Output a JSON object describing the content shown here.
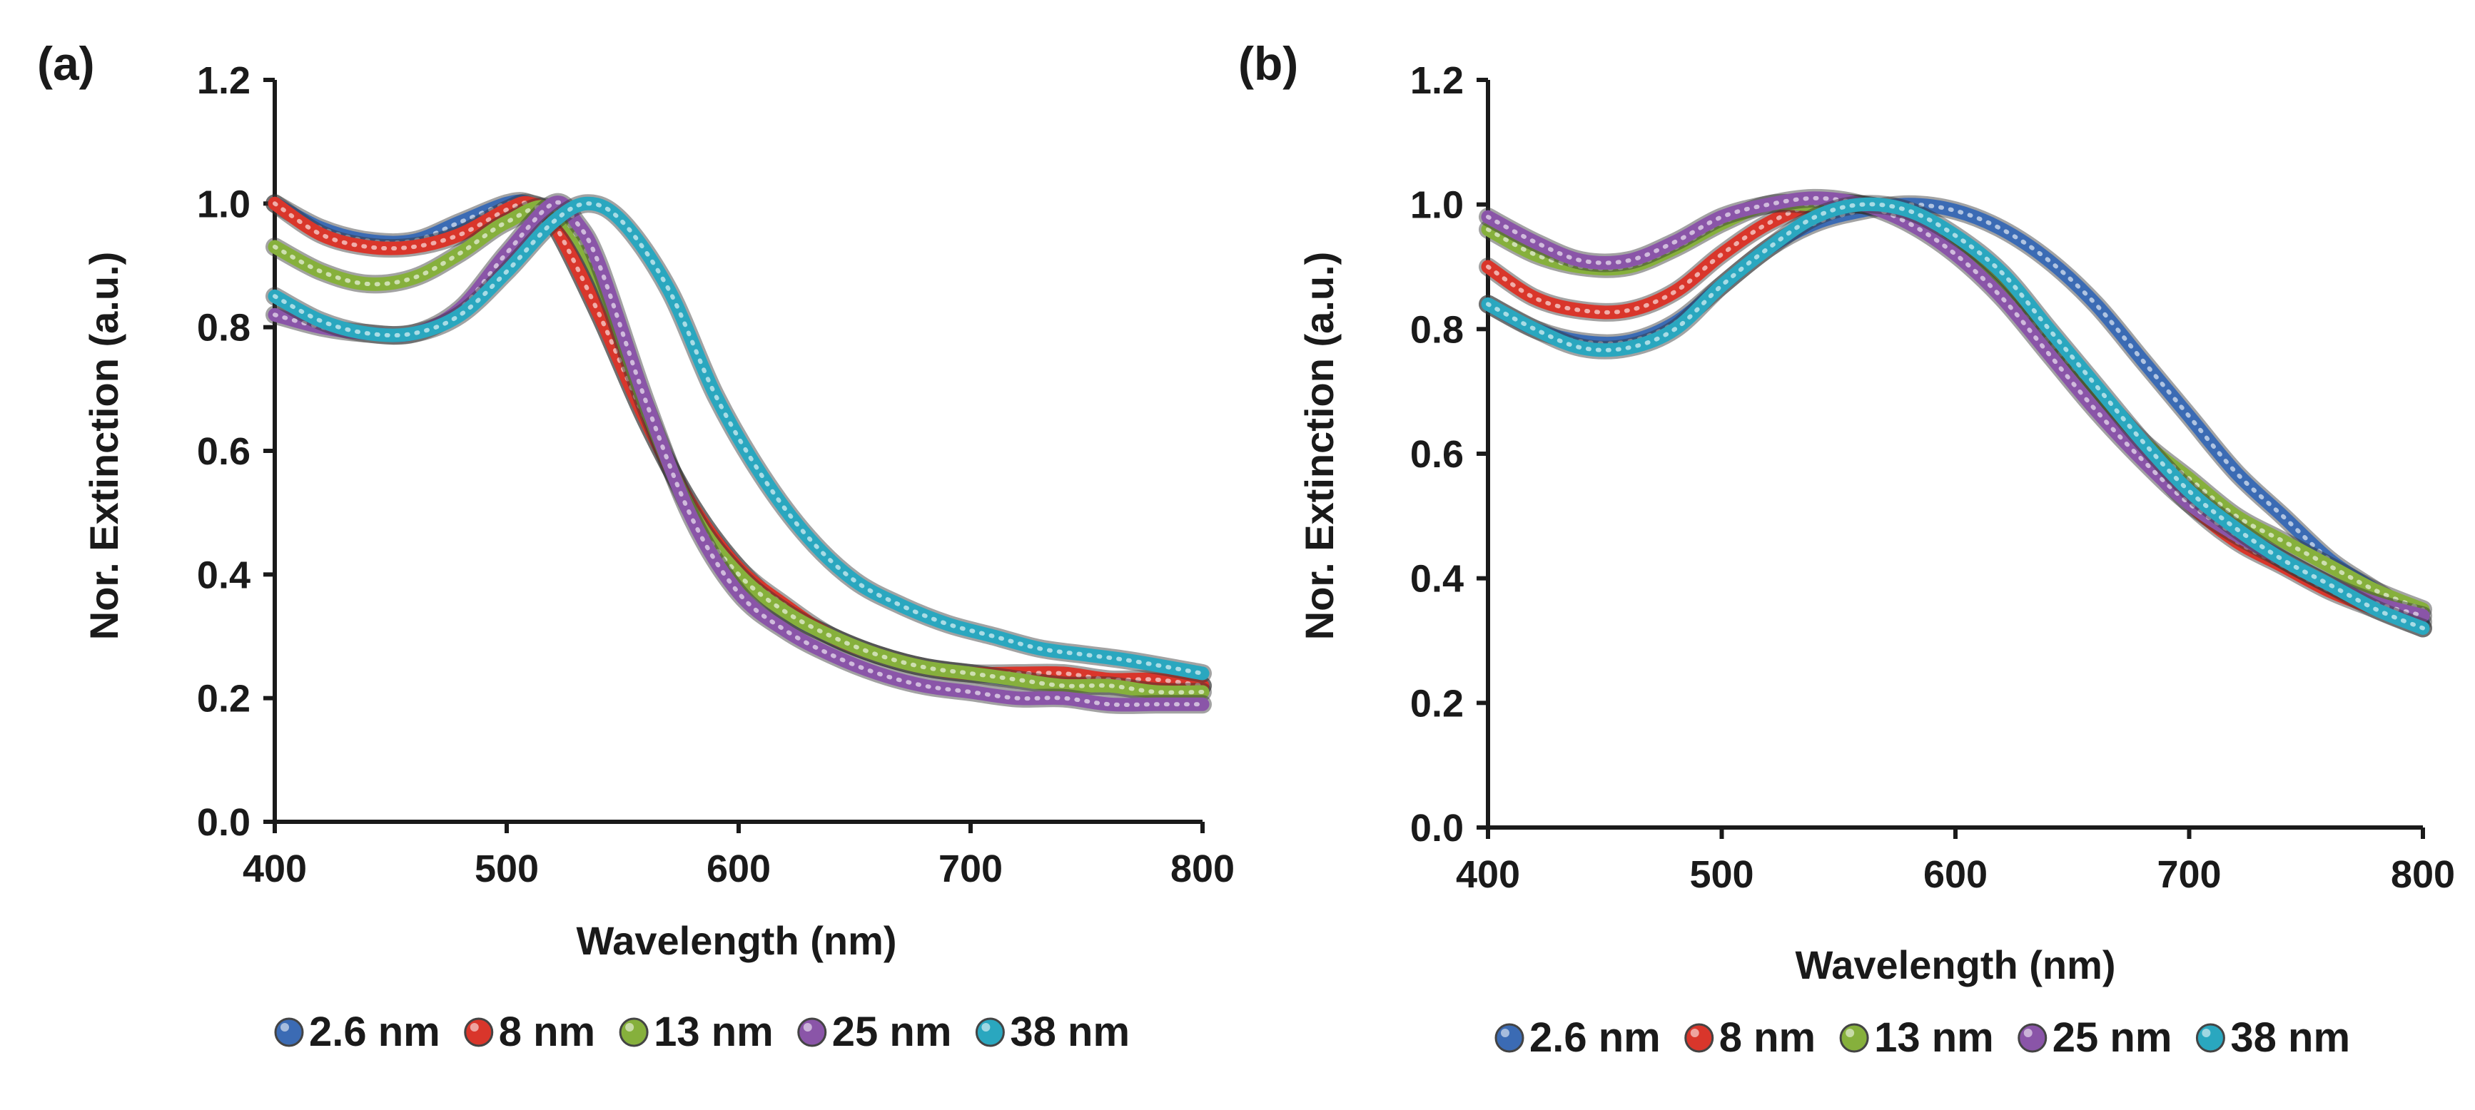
{
  "figure": {
    "panels": [
      {
        "label": "(a)",
        "xlabel": "Wavelength (nm)",
        "ylabel": "Nor. Extinction (a.u.)"
      },
      {
        "label": "(b)",
        "xlabel": "Wavelength (nm)",
        "ylabel": "Nor. Extinction (a.u.)"
      }
    ]
  },
  "chart_data": [
    {
      "type": "line",
      "panel_label": "(a)",
      "title": "",
      "xlabel": "Wavelength (nm)",
      "ylabel": "Nor. Extinction (a.u.)",
      "xlim": [
        400,
        800
      ],
      "ylim": [
        0.0,
        1.2
      ],
      "xticks": [
        400,
        500,
        600,
        700,
        800
      ],
      "xtick_labels": [
        "400",
        "500",
        "600",
        "700",
        "800"
      ],
      "yticks": [
        0.0,
        0.2,
        0.4,
        0.6,
        0.8,
        1.0,
        1.2
      ],
      "ytick_labels": [
        "0.0",
        "0.2",
        "0.4",
        "0.6",
        "0.8",
        "1.0",
        "1.2"
      ],
      "grid": false,
      "legend_position": "bottom",
      "series": [
        {
          "name": "2.6 nm",
          "color": "#3b6bb4",
          "x": [
            400,
            420,
            440,
            460,
            480,
            500,
            510,
            520,
            540,
            560,
            580,
            600,
            620,
            640,
            660,
            680,
            700,
            720,
            740,
            760,
            780,
            800
          ],
          "y": [
            1.0,
            0.96,
            0.94,
            0.94,
            0.97,
            1.0,
            1.0,
            0.97,
            0.82,
            0.65,
            0.51,
            0.41,
            0.34,
            0.3,
            0.27,
            0.25,
            0.24,
            0.23,
            0.23,
            0.22,
            0.22,
            0.22
          ]
        },
        {
          "name": "8 nm",
          "color": "#d9362b",
          "x": [
            400,
            420,
            440,
            460,
            480,
            500,
            510,
            520,
            540,
            560,
            580,
            600,
            620,
            640,
            660,
            680,
            700,
            720,
            740,
            760,
            780,
            800
          ],
          "y": [
            1.0,
            0.95,
            0.93,
            0.93,
            0.95,
            0.99,
            1.0,
            0.97,
            0.82,
            0.65,
            0.51,
            0.41,
            0.35,
            0.3,
            0.27,
            0.25,
            0.24,
            0.24,
            0.24,
            0.23,
            0.23,
            0.22
          ]
        },
        {
          "name": "13 nm",
          "color": "#86b03c",
          "x": [
            400,
            420,
            440,
            460,
            480,
            500,
            520,
            540,
            560,
            580,
            600,
            620,
            640,
            660,
            680,
            700,
            720,
            740,
            760,
            780,
            800
          ],
          "y": [
            0.93,
            0.89,
            0.87,
            0.88,
            0.92,
            0.97,
            0.99,
            0.88,
            0.67,
            0.5,
            0.4,
            0.34,
            0.3,
            0.27,
            0.25,
            0.24,
            0.23,
            0.22,
            0.22,
            0.21,
            0.21
          ]
        },
        {
          "name": "25 nm",
          "color": "#8a55a8",
          "x": [
            400,
            420,
            440,
            460,
            480,
            500,
            520,
            530,
            540,
            560,
            580,
            600,
            620,
            640,
            660,
            680,
            700,
            720,
            740,
            760,
            780,
            800
          ],
          "y": [
            0.82,
            0.8,
            0.79,
            0.79,
            0.83,
            0.92,
            1.0,
            0.97,
            0.9,
            0.68,
            0.49,
            0.37,
            0.31,
            0.27,
            0.24,
            0.22,
            0.21,
            0.2,
            0.2,
            0.19,
            0.19,
            0.19
          ]
        },
        {
          "name": "38 nm",
          "color": "#2aa7bf",
          "x": [
            400,
            420,
            440,
            460,
            480,
            500,
            520,
            535,
            550,
            570,
            590,
            610,
            630,
            650,
            670,
            690,
            710,
            730,
            750,
            770,
            800
          ],
          "y": [
            0.85,
            0.81,
            0.79,
            0.79,
            0.82,
            0.89,
            0.97,
            1.0,
            0.97,
            0.86,
            0.69,
            0.56,
            0.46,
            0.39,
            0.35,
            0.32,
            0.3,
            0.28,
            0.27,
            0.26,
            0.24
          ]
        }
      ]
    },
    {
      "type": "line",
      "panel_label": "(b)",
      "title": "",
      "xlabel": "Wavelength (nm)",
      "ylabel": "Nor. Extinction (a.u.)",
      "xlim": [
        400,
        800
      ],
      "ylim": [
        0.0,
        1.2
      ],
      "xticks": [
        400,
        500,
        600,
        700,
        800
      ],
      "xtick_labels": [
        "400",
        "500",
        "600",
        "700",
        "800"
      ],
      "yticks": [
        0.0,
        0.2,
        0.4,
        0.6,
        0.8,
        1.0,
        1.2
      ],
      "ytick_labels": [
        "0.0",
        "0.2",
        "0.4",
        "0.6",
        "0.8",
        "1.0",
        "1.2"
      ],
      "grid": false,
      "legend_position": "bottom",
      "series": [
        {
          "name": "2.6 nm",
          "color": "#3b6bb4",
          "x": [
            400,
            420,
            440,
            460,
            480,
            500,
            520,
            540,
            560,
            580,
            600,
            620,
            640,
            660,
            680,
            700,
            720,
            740,
            760,
            780,
            800
          ],
          "y": [
            0.84,
            0.8,
            0.78,
            0.78,
            0.81,
            0.87,
            0.93,
            0.97,
            0.99,
            1.0,
            0.99,
            0.96,
            0.91,
            0.84,
            0.75,
            0.66,
            0.57,
            0.5,
            0.43,
            0.38,
            0.33
          ]
        },
        {
          "name": "8 nm",
          "color": "#d9362b",
          "x": [
            400,
            420,
            440,
            460,
            480,
            500,
            520,
            540,
            560,
            580,
            600,
            620,
            640,
            660,
            680,
            700,
            720,
            740,
            760,
            780,
            800
          ],
          "y": [
            0.9,
            0.85,
            0.83,
            0.83,
            0.86,
            0.92,
            0.97,
            1.0,
            1.0,
            0.98,
            0.93,
            0.86,
            0.77,
            0.68,
            0.6,
            0.52,
            0.46,
            0.42,
            0.38,
            0.35,
            0.32
          ]
        },
        {
          "name": "13 nm",
          "color": "#86b03c",
          "x": [
            400,
            420,
            440,
            460,
            480,
            500,
            520,
            540,
            560,
            580,
            600,
            620,
            640,
            660,
            680,
            700,
            720,
            740,
            760,
            780,
            800
          ],
          "y": [
            0.96,
            0.92,
            0.9,
            0.9,
            0.93,
            0.97,
            1.0,
            1.0,
            1.0,
            0.98,
            0.93,
            0.86,
            0.78,
            0.7,
            0.62,
            0.56,
            0.5,
            0.46,
            0.42,
            0.38,
            0.35
          ]
        },
        {
          "name": "25 nm",
          "color": "#8a55a8",
          "x": [
            400,
            420,
            440,
            460,
            480,
            500,
            520,
            540,
            560,
            580,
            600,
            620,
            640,
            660,
            680,
            700,
            720,
            740,
            760,
            780,
            800
          ],
          "y": [
            0.98,
            0.94,
            0.91,
            0.91,
            0.94,
            0.98,
            1.0,
            1.01,
            1.0,
            0.97,
            0.92,
            0.85,
            0.76,
            0.67,
            0.59,
            0.52,
            0.47,
            0.43,
            0.39,
            0.36,
            0.34
          ]
        },
        {
          "name": "38 nm",
          "color": "#2aa7bf",
          "x": [
            400,
            420,
            440,
            460,
            480,
            500,
            520,
            540,
            560,
            580,
            600,
            620,
            640,
            660,
            680,
            700,
            720,
            740,
            760,
            780,
            800
          ],
          "y": [
            0.84,
            0.8,
            0.77,
            0.77,
            0.8,
            0.87,
            0.93,
            0.98,
            1.0,
            0.99,
            0.95,
            0.89,
            0.8,
            0.71,
            0.62,
            0.54,
            0.48,
            0.43,
            0.39,
            0.35,
            0.32
          ]
        }
      ]
    }
  ]
}
